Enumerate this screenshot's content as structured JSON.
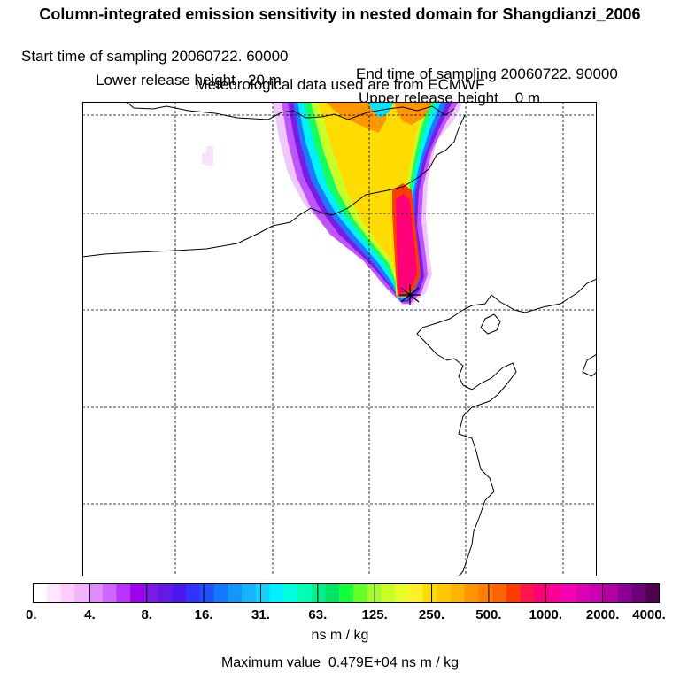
{
  "header": {
    "title": "Column-integrated emission sensitivity in nested domain for Shangdianzi_2006",
    "start_label": "Start time of sampling 20060722. 60000",
    "end_label": "End time of sampling 20060722. 90000",
    "lower_label": "Lower release height   20 m",
    "upper_label": "Upper release height    0 m",
    "met_label": "Meteorological data used are from ECMWF"
  },
  "colorbar": {
    "tick_labels": [
      "0.",
      "4.",
      "8.",
      "16.",
      "31.",
      "63.",
      "125.",
      "250.",
      "500.",
      "1000.",
      "2000.",
      "4000."
    ],
    "colors": [
      "#ffffff",
      "#ffe6ff",
      "#ffccff",
      "#f4b3ff",
      "#e08cff",
      "#cc66ff",
      "#b833ff",
      "#a000f0",
      "#7d19e6",
      "#6419e6",
      "#4b19f0",
      "#3232ff",
      "#1e50ff",
      "#1478ff",
      "#1496ff",
      "#14b4ff",
      "#14d2ff",
      "#00f0ff",
      "#00ffdc",
      "#00ffb4",
      "#00f08c",
      "#00e664",
      "#14ff3c",
      "#64ff28",
      "#a0ff28",
      "#c8ff28",
      "#e6ff28",
      "#fff028",
      "#ffdc00",
      "#ffc800",
      "#ffb400",
      "#ff9600",
      "#ff7d00",
      "#ff6400",
      "#ff3c00",
      "#ff1450",
      "#ff0078",
      "#ff0096",
      "#f500b4",
      "#dc00b4",
      "#c800b4",
      "#b400a0",
      "#8c0096",
      "#6e0078",
      "#500050"
    ],
    "units": "ns m / kg"
  },
  "footer": {
    "max_value": "Maximum value  0.479E+04 ns m / kg"
  },
  "map": {
    "colors": {
      "land_border": "#000000",
      "grid": "#000000"
    },
    "marker": "release-site-star"
  }
}
